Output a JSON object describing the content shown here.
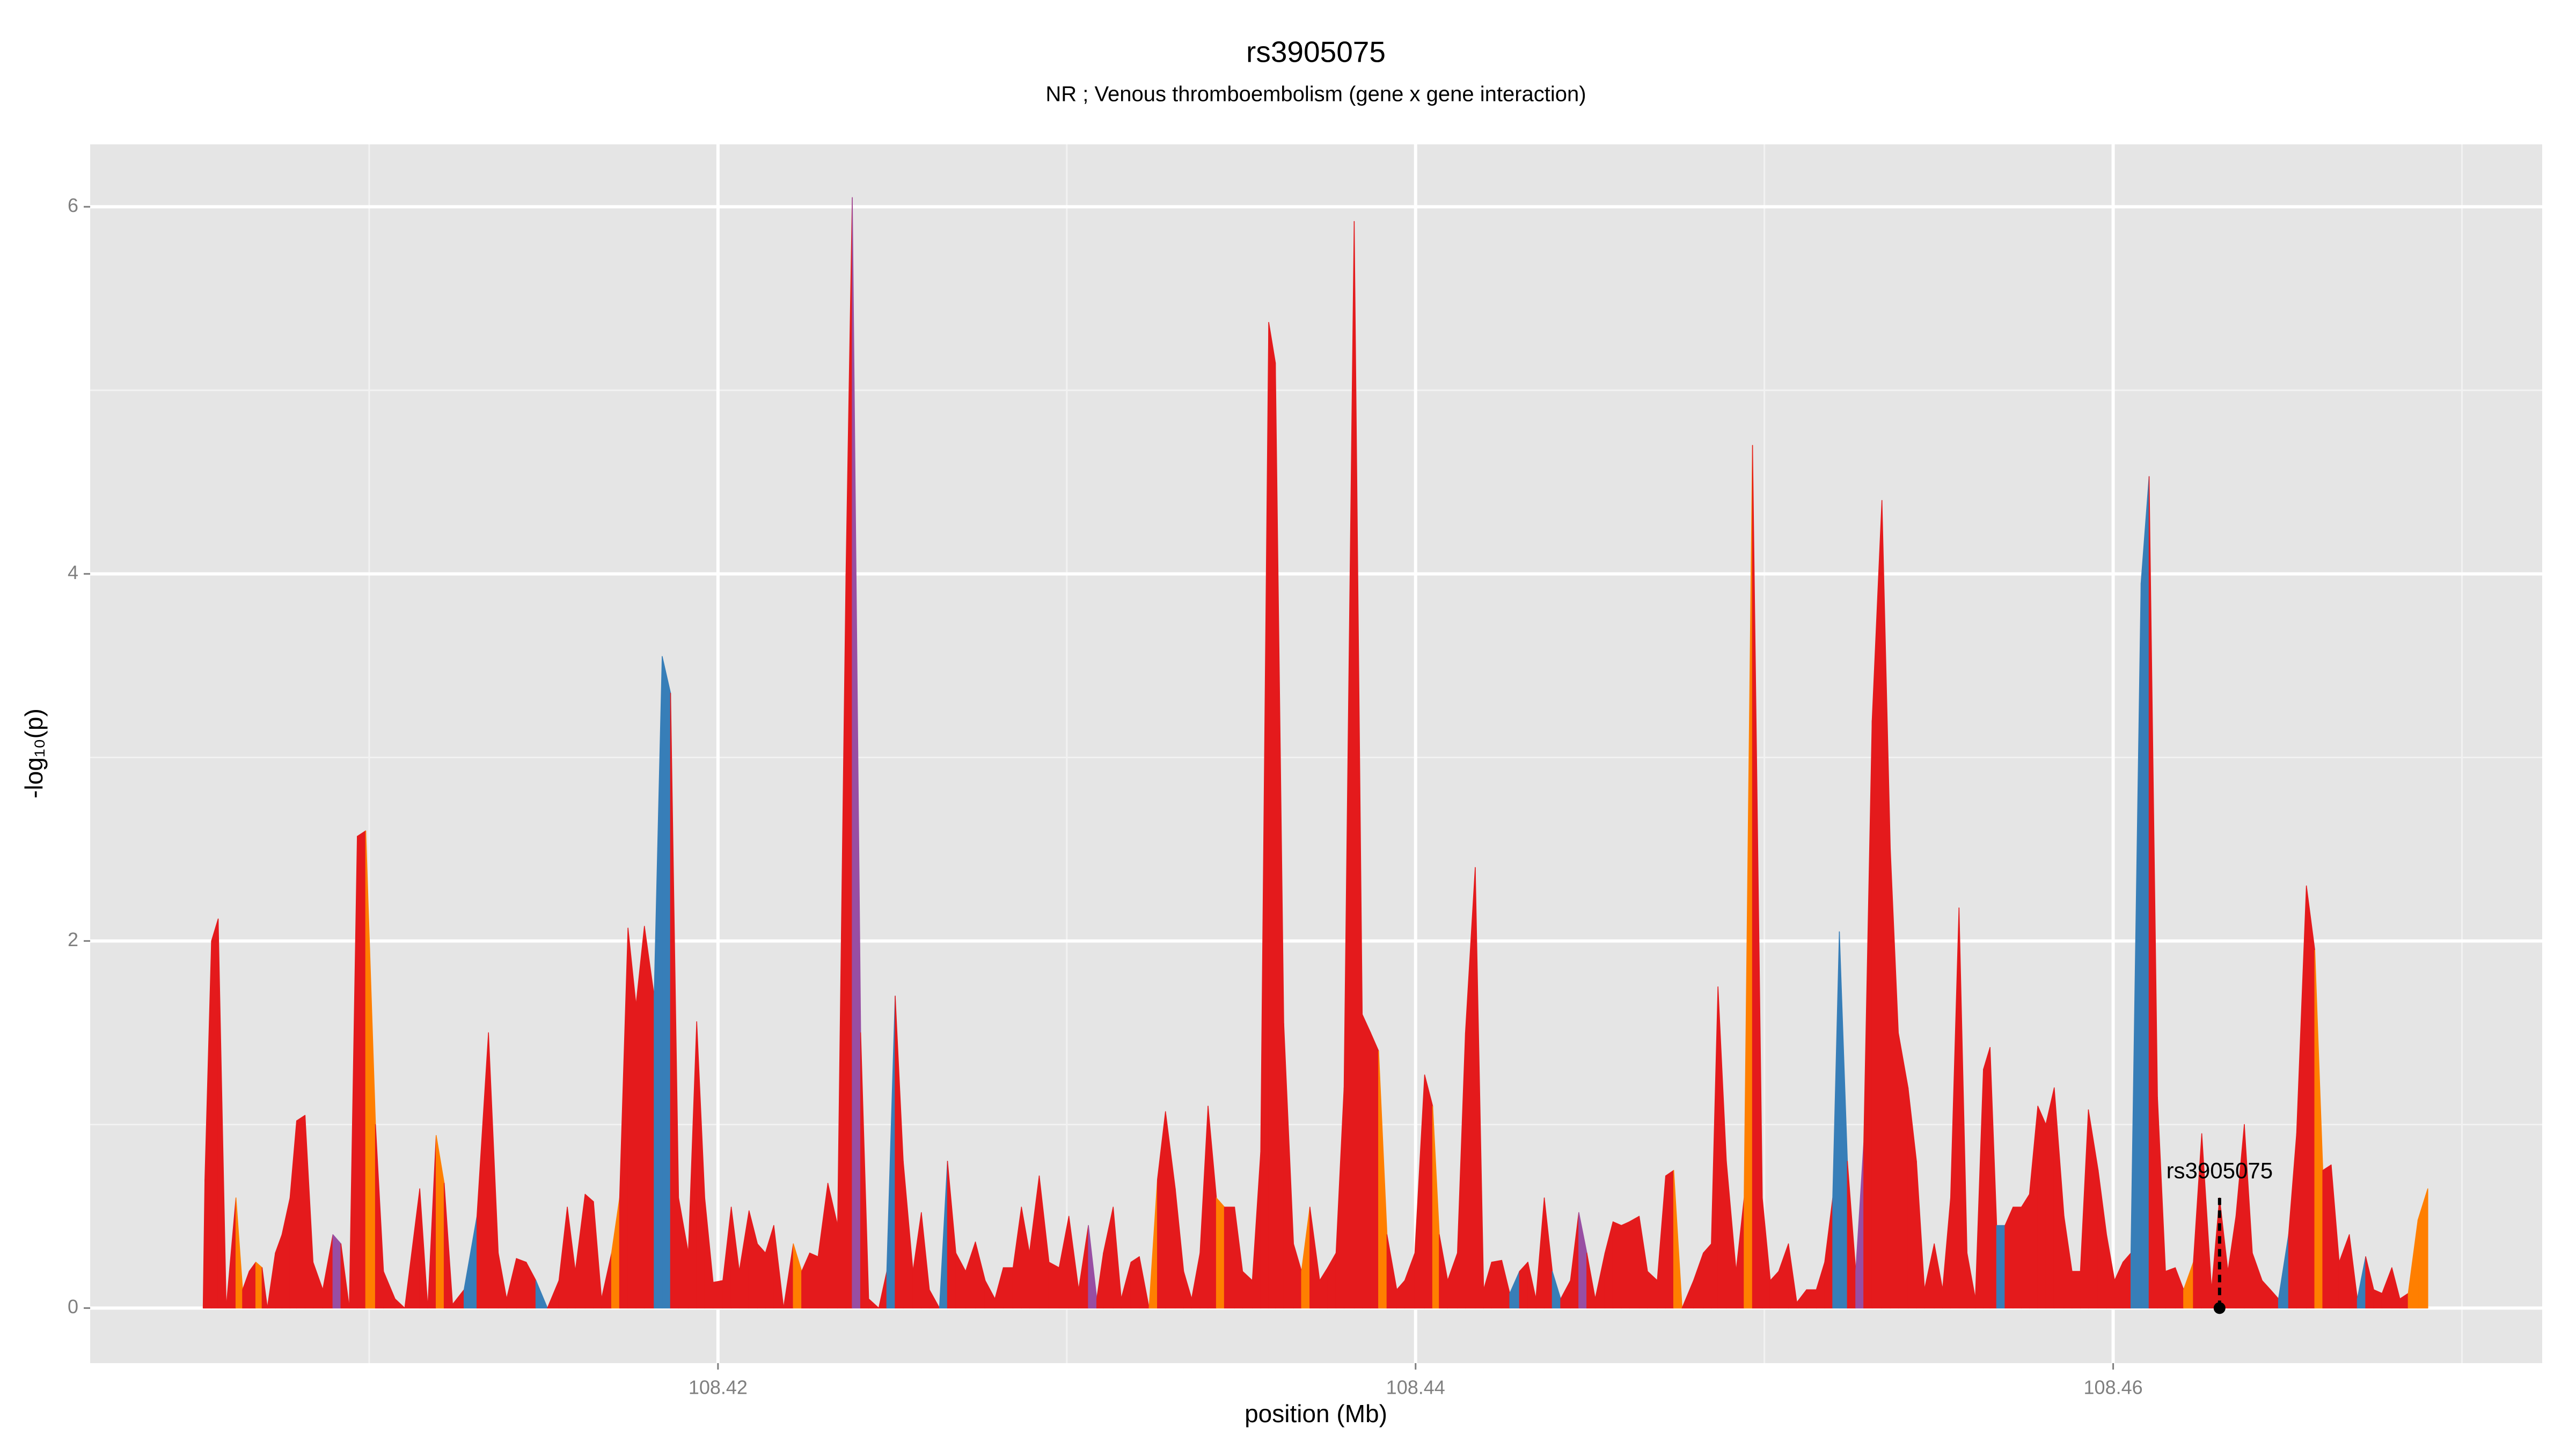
{
  "chart_data": {
    "type": "area",
    "title": "rs3905075",
    "subtitle": "NR ; Venous thromboembolism (gene x gene interaction)",
    "x_label": "position (Mb)",
    "y_label": "-log₁₀(p)",
    "xlim": [
      108.402,
      108.4723
    ],
    "ylim": [
      -0.3,
      6.34
    ],
    "xticks": [
      108.42,
      108.44,
      108.46
    ],
    "xminor": [
      108.41,
      108.43,
      108.45,
      108.47
    ],
    "yticks": [
      0,
      2,
      4,
      6
    ],
    "yminor": [
      1,
      3,
      5
    ],
    "grid": true,
    "x": [
      108.40524,
      108.40529,
      108.40548,
      108.40567,
      108.4059,
      108.40618,
      108.40637,
      108.40656,
      108.40675,
      108.40693,
      108.40708,
      108.40731,
      108.4075,
      108.40773,
      108.40792,
      108.40816,
      108.40839,
      108.40867,
      108.40896,
      108.40919,
      108.40943,
      108.40966,
      108.4099,
      108.41018,
      108.41041,
      108.41074,
      108.41102,
      108.41145,
      108.41168,
      108.41192,
      108.41215,
      108.41239,
      108.41272,
      108.41309,
      108.41342,
      108.4137,
      108.41394,
      108.41422,
      108.4145,
      108.41478,
      108.41511,
      108.41544,
      108.41568,
      108.41591,
      108.41619,
      108.41643,
      108.41666,
      108.41695,
      108.41718,
      108.41742,
      108.41765,
      108.41789,
      108.41817,
      108.4184,
      108.41864,
      108.41887,
      108.41915,
      108.41939,
      108.41962,
      108.41986,
      108.42014,
      108.42038,
      108.42061,
      108.42089,
      108.42113,
      108.42136,
      108.4216,
      108.42188,
      108.42216,
      108.4224,
      108.42263,
      108.42287,
      108.42315,
      108.42343,
      108.42367,
      108.42385,
      108.42409,
      108.42432,
      108.42461,
      108.42484,
      108.42508,
      108.42531,
      108.42559,
      108.42583,
      108.42606,
      108.42635,
      108.42658,
      108.42682,
      108.4271,
      108.42738,
      108.42766,
      108.42794,
      108.42818,
      108.42846,
      108.4287,
      108.42893,
      108.42921,
      108.42949,
      108.42978,
      108.43006,
      108.43034,
      108.43062,
      108.43086,
      108.43105,
      108.43133,
      108.43156,
      108.43184,
      108.43208,
      108.43236,
      108.4326,
      108.43283,
      108.43311,
      108.43335,
      108.43358,
      108.43382,
      108.43405,
      108.43429,
      108.43452,
      108.43481,
      108.43504,
      108.43532,
      108.43556,
      108.43579,
      108.43598,
      108.43622,
      108.4365,
      108.43673,
      108.43697,
      108.43725,
      108.43748,
      108.43772,
      108.43795,
      108.43824,
      108.43847,
      108.43871,
      108.43894,
      108.43918,
      108.43946,
      108.43969,
      108.43998,
      108.44026,
      108.44049,
      108.44068,
      108.44092,
      108.4412,
      108.44143,
      108.44171,
      108.44195,
      108.44218,
      108.44247,
      108.4427,
      108.44298,
      108.44322,
      108.44345,
      108.44369,
      108.44392,
      108.44416,
      108.44444,
      108.44468,
      108.44491,
      108.44515,
      108.44543,
      108.44566,
      108.4459,
      108.44613,
      108.44641,
      108.44665,
      108.44693,
      108.44717,
      108.4474,
      108.44764,
      108.44797,
      108.44825,
      108.44848,
      108.44867,
      108.44891,
      108.44919,
      108.44942,
      108.44966,
      108.44994,
      108.45017,
      108.45041,
      108.45069,
      108.45093,
      108.45121,
      108.45149,
      108.45173,
      108.45196,
      108.45215,
      108.45238,
      108.45262,
      108.45285,
      108.45309,
      108.45337,
      108.45361,
      108.45384,
      108.45412,
      108.45436,
      108.45459,
      108.45487,
      108.45511,
      108.45534,
      108.45558,
      108.45581,
      108.45605,
      108.45628,
      108.45647,
      108.45666,
      108.4569,
      108.45713,
      108.45737,
      108.4576,
      108.45784,
      108.45807,
      108.45831,
      108.45859,
      108.45882,
      108.45906,
      108.45929,
      108.45957,
      108.45981,
      108.46004,
      108.46028,
      108.46051,
      108.4608,
      108.46103,
      108.46127,
      108.4615,
      108.46178,
      108.46202,
      108.4623,
      108.46254,
      108.46282,
      108.46305,
      108.46329,
      108.46352,
      108.46376,
      108.46399,
      108.46427,
      108.46451,
      108.46474,
      108.46503,
      108.46526,
      108.46554,
      108.46578,
      108.46601,
      108.46625,
      108.46648,
      108.46677,
      108.467,
      108.46724,
      108.46747,
      108.46771,
      108.46799,
      108.46822,
      108.46846,
      108.46874,
      108.46902
    ],
    "values": [
      0,
      0.7,
      2.0,
      2.12,
      0,
      0.6,
      0.1,
      0.2,
      0.25,
      0.22,
      0,
      0.3,
      0.4,
      0.6,
      1.02,
      1.05,
      0.25,
      0.1,
      0.4,
      0.35,
      0,
      2.57,
      2.6,
      1.0,
      0.2,
      0.05,
      0,
      0.65,
      0,
      0.94,
      0.68,
      0.02,
      0.1,
      0.5,
      1.5,
      0.3,
      0.05,
      0.27,
      0.25,
      0.15,
      0,
      0.15,
      0.55,
      0.2,
      0.62,
      0.58,
      0.05,
      0.3,
      0.6,
      2.07,
      1.65,
      2.08,
      1.7,
      3.55,
      3.35,
      0.6,
      0.3,
      1.56,
      0.6,
      0.14,
      0.15,
      0.55,
      0.2,
      0.53,
      0.35,
      0.3,
      0.45,
      0,
      0.35,
      0.2,
      0.3,
      0.28,
      0.68,
      0.45,
      4.0,
      6.05,
      1.5,
      0.05,
      0,
      0.2,
      1.7,
      0.8,
      0.2,
      0.52,
      0.1,
      0,
      0.8,
      0.3,
      0.2,
      0.36,
      0.15,
      0.05,
      0.22,
      0.22,
      0.55,
      0.3,
      0.72,
      0.25,
      0.22,
      0.5,
      0.1,
      0.45,
      0.05,
      0.3,
      0.55,
      0.05,
      0.25,
      0.28,
      0,
      0.7,
      1.07,
      0.65,
      0.2,
      0.05,
      0.3,
      1.1,
      0.6,
      0.55,
      0.55,
      0.2,
      0.15,
      0.85,
      5.37,
      5.15,
      1.55,
      0.35,
      0.2,
      0.55,
      0.15,
      0.22,
      0.3,
      1.2,
      5.92,
      1.6,
      1.5,
      1.4,
      0.4,
      0.1,
      0.15,
      0.3,
      1.27,
      1.1,
      0.4,
      0.15,
      0.3,
      1.5,
      2.4,
      0.1,
      0.25,
      0.26,
      0.08,
      0.2,
      0.25,
      0.05,
      0.6,
      0.2,
      0.05,
      0.15,
      0.52,
      0.3,
      0.05,
      0.3,
      0.47,
      0.45,
      0.47,
      0.5,
      0.2,
      0.15,
      0.72,
      0.75,
      0,
      0.15,
      0.3,
      0.35,
      1.75,
      0.8,
      0.2,
      0.6,
      4.7,
      0.6,
      0.15,
      0.2,
      0.35,
      0.03,
      0.1,
      0.1,
      0.25,
      0.6,
      2.05,
      0.8,
      0.2,
      0.9,
      3.2,
      4.4,
      2.5,
      1.5,
      1.2,
      0.8,
      0.1,
      0.35,
      0.1,
      0.6,
      2.18,
      0.3,
      0.05,
      1.3,
      1.42,
      0.45,
      0.45,
      0.55,
      0.55,
      0.62,
      1.1,
      1.0,
      1.2,
      0.5,
      0.2,
      0.2,
      1.08,
      0.75,
      0.4,
      0.15,
      0.25,
      0.3,
      3.95,
      4.53,
      1.15,
      0.2,
      0.22,
      0.1,
      0.25,
      0.95,
      0.1,
      0.6,
      0.2,
      0.5,
      1.0,
      0.3,
      0.15,
      0.1,
      0.05,
      0.4,
      0.95,
      2.3,
      1.95,
      0.75,
      0.78,
      0.25,
      0.4,
      0.05,
      0.28,
      0.1,
      0.08,
      0.22,
      0.05,
      0.08,
      0.48,
      0.65
    ],
    "segment_colors": [
      "#e41a1c",
      "#e41a1c",
      "#e41a1c",
      "#e41a1c",
      "#e41a1c",
      "#ff7f00",
      "#e41a1c",
      "#e41a1c",
      "#ff7f00",
      "#e41a1c",
      "#e41a1c",
      "#e41a1c",
      "#e41a1c",
      "#e41a1c",
      "#e41a1c",
      "#e41a1c",
      "#e41a1c",
      "#e41a1c",
      "#984ea3",
      "#e41a1c",
      "#e41a1c",
      "#e41a1c",
      "#ff7f00",
      "#e41a1c",
      "#e41a1c",
      "#e41a1c",
      "#e41a1c",
      "#e41a1c",
      "#e41a1c",
      "#ff7f00",
      "#e41a1c",
      "#e41a1c",
      "#377eb8",
      "#e41a1c",
      "#e41a1c",
      "#e41a1c",
      "#e41a1c",
      "#e41a1c",
      "#e41a1c",
      "#377eb8",
      "#e41a1c",
      "#e41a1c",
      "#e41a1c",
      "#e41a1c",
      "#e41a1c",
      "#e41a1c",
      "#e41a1c",
      "#ff7f00",
      "#e41a1c",
      "#e41a1c",
      "#e41a1c",
      "#e41a1c",
      "#377eb8",
      "#377eb8",
      "#e41a1c",
      "#e41a1c",
      "#e41a1c",
      "#e41a1c",
      "#e41a1c",
      "#e41a1c",
      "#e41a1c",
      "#e41a1c",
      "#e41a1c",
      "#e41a1c",
      "#e41a1c",
      "#e41a1c",
      "#e41a1c",
      "#e41a1c",
      "#ff7f00",
      "#e41a1c",
      "#e41a1c",
      "#e41a1c",
      "#e41a1c",
      "#e41a1c",
      "#e41a1c",
      "#984ea3",
      "#e41a1c",
      "#e41a1c",
      "#e41a1c",
      "#377eb8",
      "#e41a1c",
      "#e41a1c",
      "#e41a1c",
      "#e41a1c",
      "#e41a1c",
      "#377eb8",
      "#e41a1c",
      "#e41a1c",
      "#e41a1c",
      "#e41a1c",
      "#e41a1c",
      "#e41a1c",
      "#e41a1c",
      "#e41a1c",
      "#e41a1c",
      "#e41a1c",
      "#e41a1c",
      "#e41a1c",
      "#e41a1c",
      "#e41a1c",
      "#e41a1c",
      "#984ea3",
      "#e41a1c",
      "#e41a1c",
      "#e41a1c",
      "#e41a1c",
      "#e41a1c",
      "#e41a1c",
      "#ff7f00",
      "#e41a1c",
      "#e41a1c",
      "#e41a1c",
      "#e41a1c",
      "#e41a1c",
      "#e41a1c",
      "#e41a1c",
      "#ff7f00",
      "#e41a1c",
      "#e41a1c",
      "#e41a1c",
      "#e41a1c",
      "#e41a1c",
      "#e41a1c",
      "#e41a1c",
      "#e41a1c",
      "#e41a1c",
      "#ff7f00",
      "#e41a1c",
      "#e41a1c",
      "#e41a1c",
      "#e41a1c",
      "#e41a1c",
      "#e41a1c",
      "#e41a1c",
      "#e41a1c",
      "#ff7f00",
      "#e41a1c",
      "#e41a1c",
      "#e41a1c",
      "#e41a1c",
      "#e41a1c",
      "#ff7f00",
      "#e41a1c",
      "#e41a1c",
      "#e41a1c",
      "#e41a1c",
      "#e41a1c",
      "#e41a1c",
      "#e41a1c",
      "#e41a1c",
      "#377eb8",
      "#e41a1c",
      "#e41a1c",
      "#e41a1c",
      "#e41a1c",
      "#377eb8",
      "#e41a1c",
      "#e41a1c",
      "#984ea3",
      "#e41a1c",
      "#e41a1c",
      "#e41a1c",
      "#e41a1c",
      "#e41a1c",
      "#e41a1c",
      "#e41a1c",
      "#e41a1c",
      "#e41a1c",
      "#e41a1c",
      "#ff7f00",
      "#e41a1c",
      "#e41a1c",
      "#e41a1c",
      "#e41a1c",
      "#e41a1c",
      "#e41a1c",
      "#e41a1c",
      "#ff7f00",
      "#e41a1c",
      "#e41a1c",
      "#e41a1c",
      "#e41a1c",
      "#e41a1c",
      "#e41a1c",
      "#e41a1c",
      "#e41a1c",
      "#e41a1c",
      "#377eb8",
      "#377eb8",
      "#e41a1c",
      "#984ea3",
      "#e41a1c",
      "#e41a1c",
      "#e41a1c",
      "#e41a1c",
      "#e41a1c",
      "#e41a1c",
      "#e41a1c",
      "#e41a1c",
      "#e41a1c",
      "#e41a1c",
      "#e41a1c",
      "#e41a1c",
      "#e41a1c",
      "#e41a1c",
      "#e41a1c",
      "#e41a1c",
      "#377eb8",
      "#e41a1c",
      "#e41a1c",
      "#e41a1c",
      "#e41a1c",
      "#e41a1c",
      "#e41a1c",
      "#e41a1c",
      "#e41a1c",
      "#e41a1c",
      "#e41a1c",
      "#e41a1c",
      "#e41a1c",
      "#e41a1c",
      "#e41a1c",
      "#e41a1c",
      "#377eb8",
      "#377eb8",
      "#e41a1c",
      "#e41a1c",
      "#e41a1c",
      "#e41a1c",
      "#ff7f00",
      "#e41a1c",
      "#e41a1c",
      "#e41a1c",
      "#e41a1c",
      "#e41a1c",
      "#e41a1c",
      "#e41a1c",
      "#e41a1c",
      "#e41a1c",
      "#e41a1c",
      "#377eb8",
      "#e41a1c",
      "#e41a1c",
      "#e41a1c",
      "#ff7f00",
      "#e41a1c",
      "#e41a1c",
      "#e41a1c",
      "#e41a1c",
      "#377eb8",
      "#e41a1c",
      "#e41a1c",
      "#e41a1c",
      "#e41a1c",
      "#e41a1c",
      "#ff7f00",
      "#ff7f00"
    ],
    "highlight": {
      "label": "rs3905075",
      "x": 108.46305,
      "y": 0
    }
  }
}
